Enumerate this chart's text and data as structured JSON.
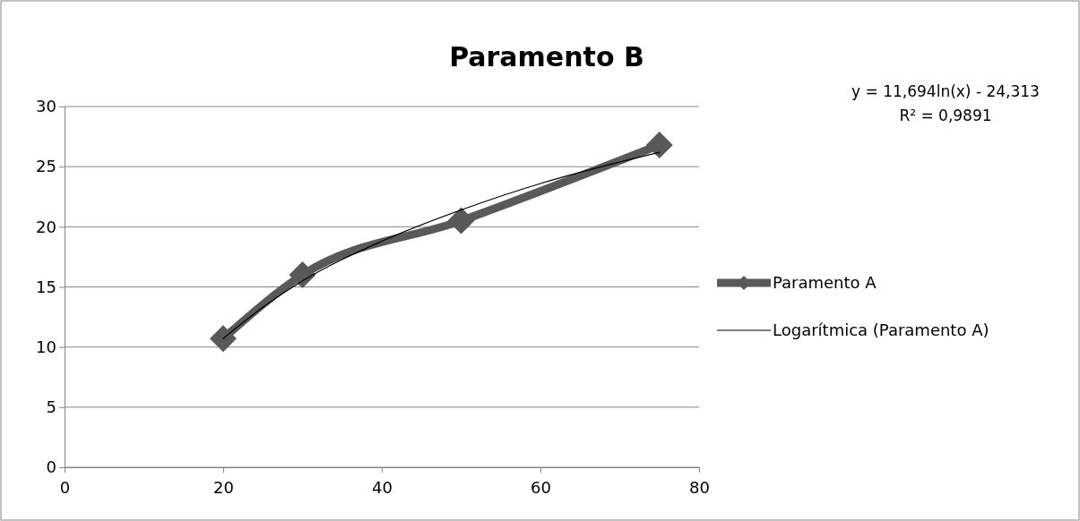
{
  "chart_data": {
    "type": "line",
    "title": "Paramento B",
    "x": [
      20,
      30,
      50,
      75
    ],
    "series": [
      {
        "name": "Paramento A",
        "color": "#595959",
        "values": [
          10.7,
          16.0,
          20.5,
          26.8
        ],
        "marker": "diamond"
      },
      {
        "name": "Logarítmica (Paramento A)",
        "color": "#000000",
        "x": [
          20,
          25,
          30,
          40,
          50,
          60,
          75
        ],
        "values": [
          10.7,
          13.3,
          15.5,
          18.8,
          21.4,
          23.6,
          26.2
        ],
        "marker": "none"
      }
    ],
    "xlim": [
      0,
      80
    ],
    "xticks": [
      0,
      20,
      40,
      60,
      80
    ],
    "ylim": [
      0,
      30
    ],
    "yticks": [
      0,
      5,
      10,
      15,
      20,
      25,
      30
    ],
    "grid": "y",
    "legend": "right",
    "annotations": [
      "y = 11,694ln(x) - 24,313",
      "R² = 0,9891"
    ]
  }
}
